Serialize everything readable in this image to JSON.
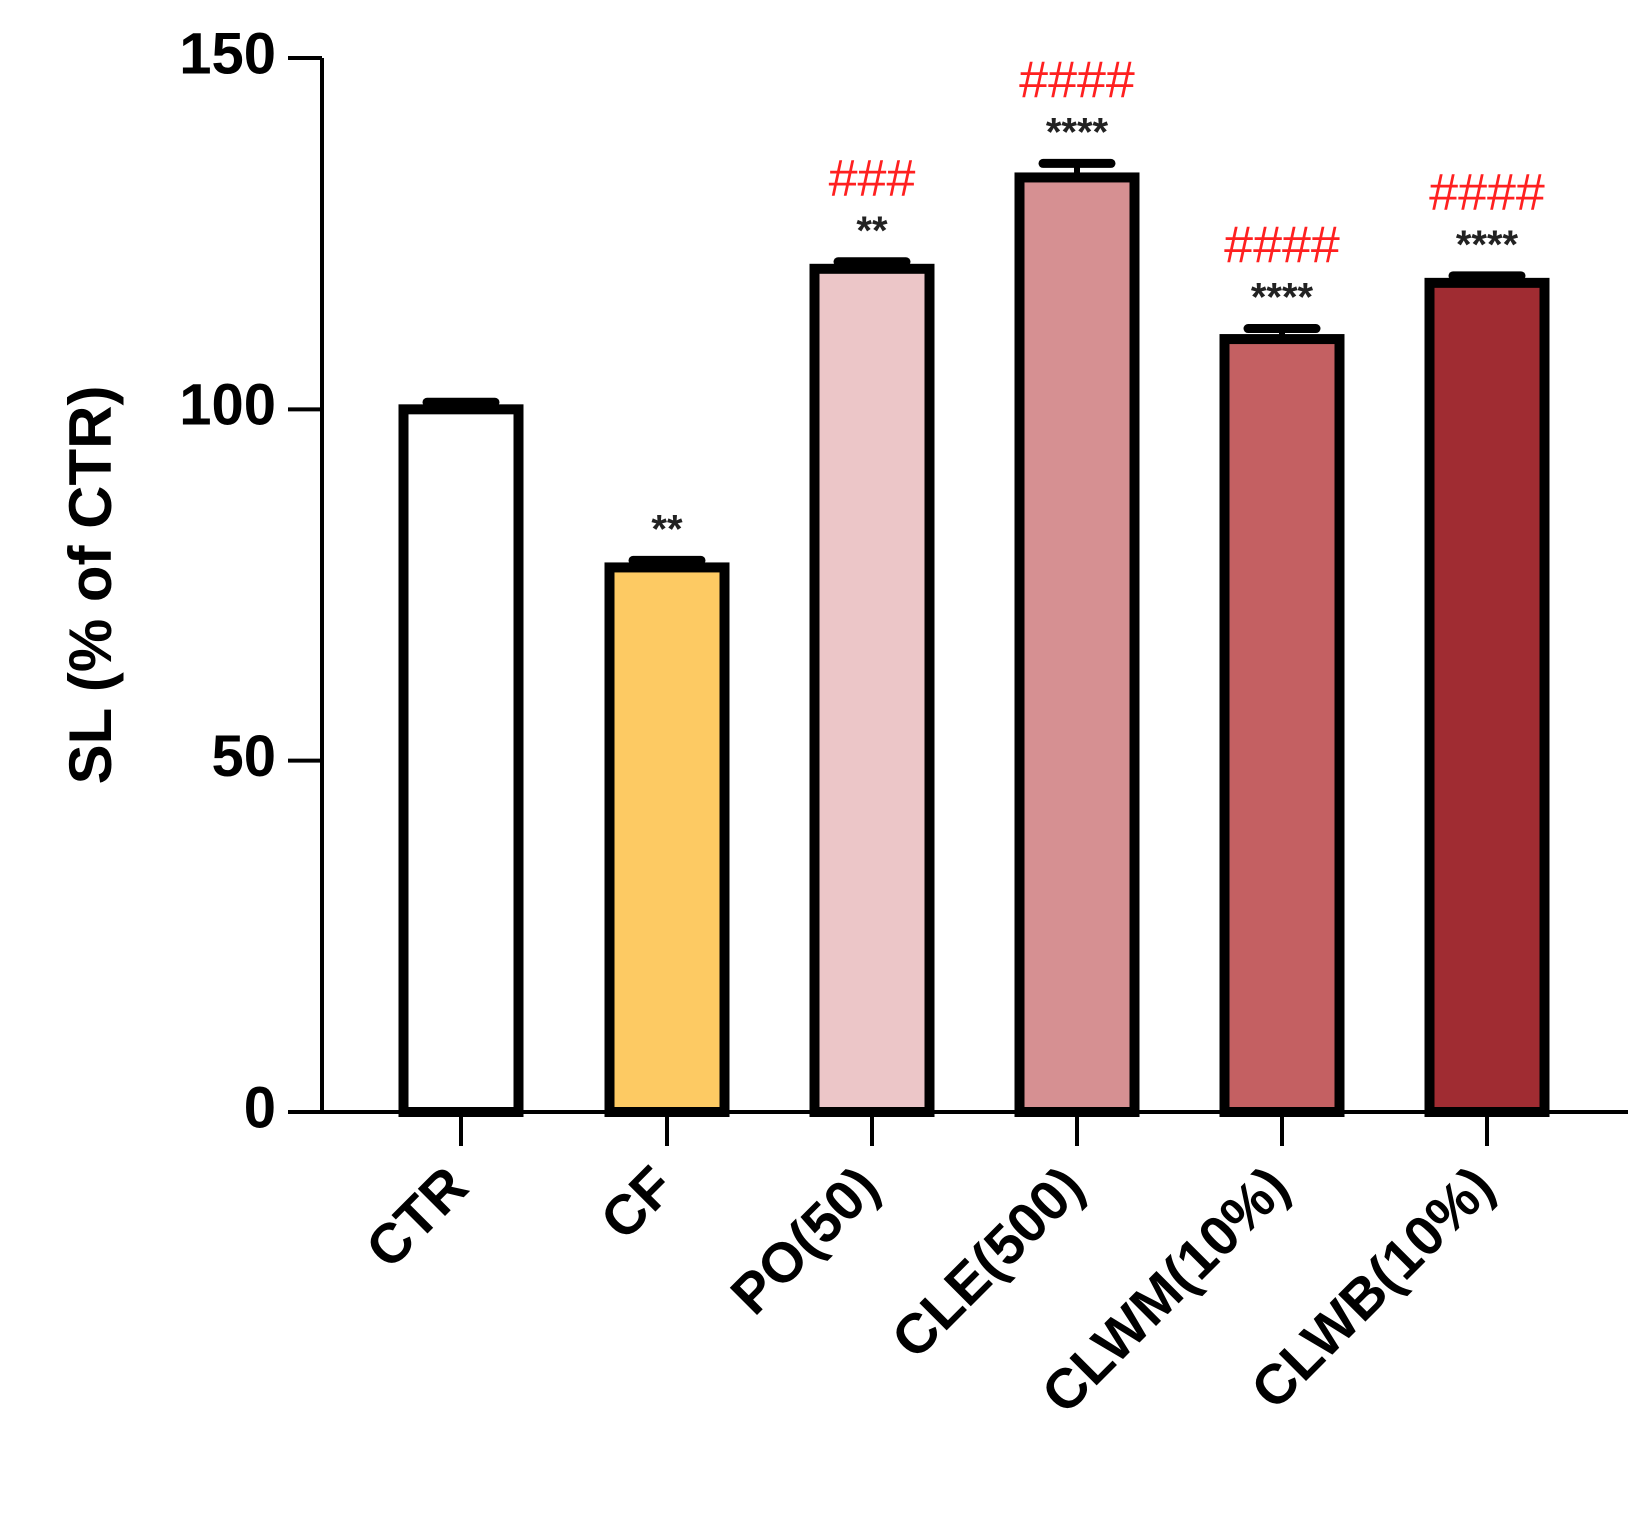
{
  "chart_data": {
    "type": "bar",
    "title": "",
    "xlabel": "",
    "ylabel": "SL (% of CTR)",
    "ylim": [
      0,
      150
    ],
    "yticks": [
      0,
      50,
      100,
      150
    ],
    "categories": [
      "CTR",
      "CF",
      "PO(50)",
      "CLE(500)",
      "CLWM(10%)",
      "CLWB(10%)"
    ],
    "values": [
      100,
      77.5,
      120,
      133,
      110,
      118
    ],
    "errors": [
      1,
      1,
      1,
      2,
      1.5,
      1
    ],
    "colors": [
      "#ffffff",
      "#fdca63",
      "#ecc6c8",
      "#d69092",
      "#c46062",
      "#a02c32"
    ],
    "significance_vs_ctr": [
      "",
      "**",
      "**",
      "****",
      "****",
      "****"
    ],
    "significance_vs_cf": [
      "",
      "",
      "###",
      "####",
      "####",
      "####"
    ],
    "grid": false,
    "legend": "none"
  }
}
